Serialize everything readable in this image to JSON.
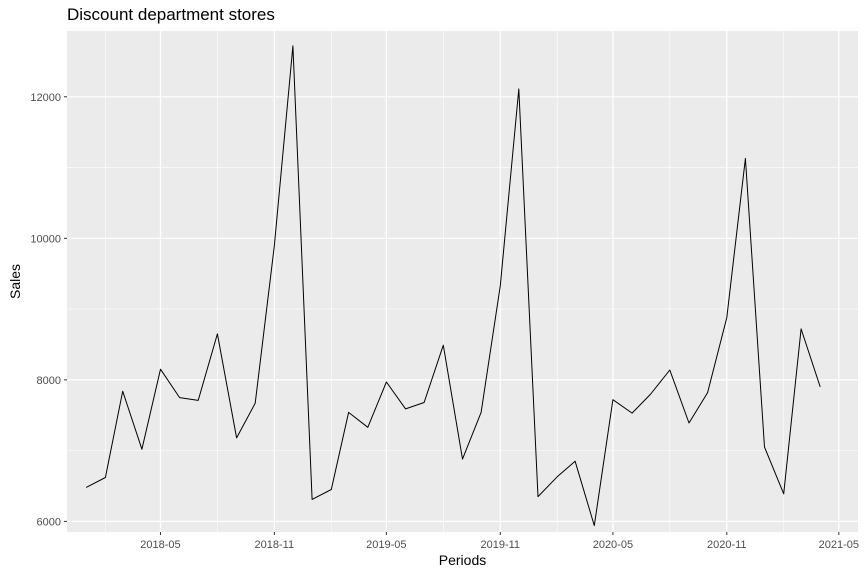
{
  "chart_data": {
    "type": "line",
    "title": "Discount department stores",
    "xlabel": "Periods",
    "ylabel": "Sales",
    "x": [
      "2018-01",
      "2018-02",
      "2018-03",
      "2018-04",
      "2018-05",
      "2018-06",
      "2018-07",
      "2018-08",
      "2018-09",
      "2018-10",
      "2018-11",
      "2018-12",
      "2019-01",
      "2019-02",
      "2019-03",
      "2019-04",
      "2019-05",
      "2019-06",
      "2019-07",
      "2019-08",
      "2019-09",
      "2019-10",
      "2019-11",
      "2019-12",
      "2020-01",
      "2020-02",
      "2020-03",
      "2020-04",
      "2020-05",
      "2020-06",
      "2020-07",
      "2020-08",
      "2020-09",
      "2020-10",
      "2020-11",
      "2020-12",
      "2021-01",
      "2021-02",
      "2021-03",
      "2021-04"
    ],
    "series": [
      {
        "values": [
          6480,
          6620,
          7840,
          7020,
          8150,
          7750,
          7710,
          8650,
          7180,
          7670,
          9890,
          12720,
          6310,
          6450,
          7540,
          7330,
          7970,
          7590,
          7680,
          8490,
          6880,
          7540,
          9330,
          12110,
          6350,
          6630,
          6850,
          5940,
          7720,
          7530,
          7800,
          8140,
          7390,
          7820,
          8880,
          11130,
          7050,
          6390,
          8720,
          7900
        ]
      }
    ],
    "xticks": [
      "2018-05",
      "2018-11",
      "2019-05",
      "2019-11",
      "2020-05",
      "2020-11",
      "2021-05"
    ],
    "yticks": [
      6000,
      8000,
      10000,
      12000
    ],
    "ylim": [
      5850,
      12930
    ],
    "xlim": [
      "2017-12-01",
      "2021-06-01"
    ],
    "grid": true,
    "legend": "none",
    "colors": {
      "panel": "#ebebeb",
      "grid": "#ffffff",
      "line": "#000000",
      "tick_text": "#4d4d4d"
    }
  }
}
